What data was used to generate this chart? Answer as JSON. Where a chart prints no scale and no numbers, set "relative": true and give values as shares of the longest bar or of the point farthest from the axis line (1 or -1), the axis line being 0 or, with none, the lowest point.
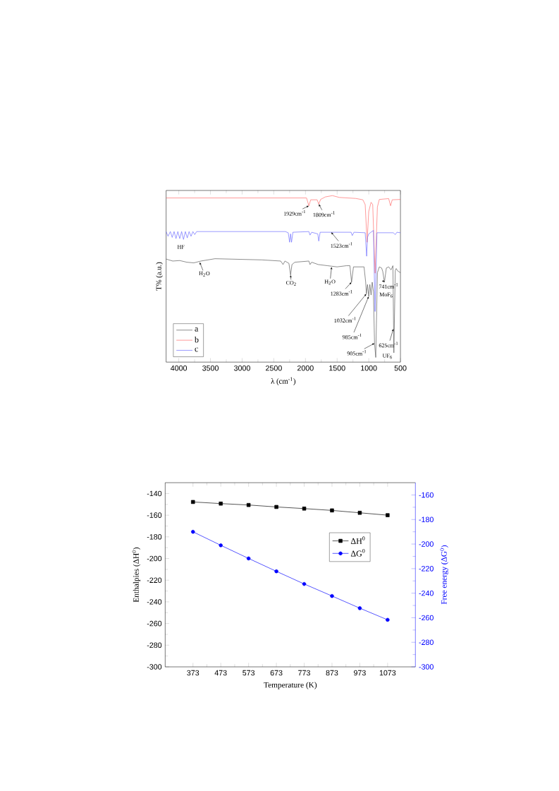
{
  "chart_data": [
    {
      "type": "line",
      "relative": true,
      "xlabel": "λ  (cm$^{-1}$)",
      "ylabel": "T% (a.u.)",
      "xlim": [
        4200,
        500
      ],
      "xticks": [
        4000,
        3500,
        3000,
        2500,
        2000,
        1500,
        1000,
        500
      ],
      "legend": "bottom left",
      "series": [
        {
          "name": "a",
          "color": "#555555",
          "x": [
            4200,
            4096,
            3985,
            3874,
            3763,
            3651,
            3540,
            3429,
            2688,
            2391,
            2354,
            2324,
            2261,
            2235,
            2213,
            2168,
            1946,
            1928,
            1902,
            1798,
            1650,
            1501,
            1353,
            1298,
            1272,
            1242,
            1075,
            1049,
            1038,
            1020,
            1001,
            983,
            964,
            946,
            927,
            909,
            890,
            864,
            834,
            797,
            779,
            753,
            723,
            686,
            649,
            619,
            604,
            582,
            567,
            545,
            500
          ],
          "values": [
            0.619,
            0.607,
            0.61,
            0.6,
            0.596,
            0.607,
            0.614,
            0.621,
            0.614,
            0.607,
            0.586,
            0.607,
            0.593,
            0.523,
            0.586,
            0.6,
            0.607,
            0.586,
            0.6,
            0.586,
            0.579,
            0.572,
            0.579,
            0.579,
            0.48,
            0.572,
            0.572,
            0.48,
            0.41,
            0.466,
            0.395,
            0.466,
            0.403,
            0.48,
            0.424,
            0.113,
            0.028,
            0.537,
            0.572,
            0.565,
            0.544,
            0.48,
            0.565,
            0.572,
            0.554,
            0.579,
            0.056,
            0.551,
            0.562,
            0.548,
            0.537
          ]
        },
        {
          "name": "b",
          "color": "#ff6666",
          "x": [
            4200,
            1983,
            1946,
            1917,
            1816,
            1790,
            1761,
            1687,
            1575,
            1464,
            1205,
            1094,
            1057,
            1027,
            1001,
            964,
            938,
            901,
            864,
            834,
            686,
            656,
            630,
            500
          ],
          "values": [
            0.986,
            0.986,
            0.939,
            0.975,
            0.975,
            0.949,
            0.977,
            0.992,
            1.0,
            0.989,
            0.983,
            0.975,
            0.946,
            0.72,
            0.904,
            0.96,
            0.946,
            0.534,
            0.932,
            0.977,
            0.982,
            0.939,
            0.975,
            0.977
          ]
        },
        {
          "name": "c",
          "color": "#6666ff",
          "x": [
            4200,
            4170,
            4133,
            4104,
            4074,
            4044,
            4015,
            3985,
            3955,
            3926,
            3896,
            3866,
            3837,
            3807,
            3777,
            3748,
            3718,
            2317,
            2272,
            2250,
            2235,
            2220,
            2198,
            1946,
            1928,
            1902,
            1805,
            1790,
            1768,
            1279,
            1261,
            1234,
            1057,
            1034,
            1020,
            1001,
            927,
            901,
            871,
            612,
            582,
            556,
            500
          ],
          "values": [
            0.784,
            0.756,
            0.784,
            0.749,
            0.784,
            0.742,
            0.784,
            0.742,
            0.784,
            0.737,
            0.784,
            0.746,
            0.784,
            0.756,
            0.784,
            0.766,
            0.784,
            0.784,
            0.777,
            0.72,
            0.77,
            0.72,
            0.78,
            0.784,
            0.763,
            0.78,
            0.77,
            0.727,
            0.78,
            0.78,
            0.76,
            0.78,
            0.777,
            0.636,
            0.749,
            0.77,
            0.791,
            0.304,
            0.777,
            0.777,
            0.766,
            0.78,
            0.777
          ]
        }
      ],
      "annotations": [
        {
          "text": "1929cm$^{-1}$",
          "x": 1946,
          "y": 0.939
        },
        {
          "text": "1809cm$^{-1}$",
          "x": 1790,
          "y": 0.949
        },
        {
          "text": "HF",
          "x": 3985,
          "y": 0.742
        },
        {
          "text": "1523cm$^{-1}$",
          "x": 1594,
          "y": 0.78
        },
        {
          "text": "H$_{2}$O",
          "x": 3670,
          "y": 0.6
        },
        {
          "text": "CO$_{2}$",
          "x": 2235,
          "y": 0.523
        },
        {
          "text": "H$_{2}$O",
          "x": 1587,
          "y": 0.572
        },
        {
          "text": "1283cm$^{-1}$",
          "x": 1272,
          "y": 0.48
        },
        {
          "text": "1032cm$^{-1}$",
          "x": 1038,
          "y": 0.41
        },
        {
          "text": "985cm$^{-1}$",
          "x": 1001,
          "y": 0.395
        },
        {
          "text": "905cm$^{-1}$",
          "x": 909,
          "y": 0.113
        },
        {
          "text": "625cm$^{-1}$",
          "x": 612,
          "y": 0.2
        },
        {
          "text": "UF$_{6}$",
          "x": 604,
          "y": 0.056
        },
        {
          "text": "741cm$^{-1}$",
          "x": 753,
          "y": 0.48
        },
        {
          "text": "MoF$_{6}$",
          "x": 753,
          "y": 0.48
        }
      ]
    },
    {
      "type": "line",
      "xlabel": "Temperature (K)",
      "ylabel": "Enthalpies (ΔH$^{0}$)",
      "y2label": "Free energy  (ΔG$^{0}$)",
      "x": [
        373,
        473,
        573,
        673,
        773,
        873,
        973,
        1073
      ],
      "xlim": [
        273,
        1173
      ],
      "xticks": [
        373,
        473,
        573,
        673,
        773,
        873,
        973,
        1073
      ],
      "ylim": [
        -300,
        -130
      ],
      "yticks": [
        -300,
        -280,
        -260,
        -240,
        -220,
        -200,
        -180,
        -160,
        -140
      ],
      "y2lim": [
        -300,
        -150
      ],
      "y2ticks": [
        -300,
        -280,
        -260,
        -240,
        -220,
        -200,
        -180,
        -160
      ],
      "legend": "right",
      "series": [
        {
          "name": "ΔH$^{0}$",
          "color": "#000000",
          "marker": "square",
          "values": [
            -147.8,
            -149.3,
            -150.6,
            -152.4,
            -153.9,
            -155.6,
            -157.8,
            -160.0
          ]
        },
        {
          "name": "ΔG$^{0}$",
          "color": "#0000ff",
          "marker": "circle",
          "axis": "y2",
          "values": [
            -190.0,
            -201.0,
            -211.7,
            -222.2,
            -232.5,
            -242.3,
            -252.2,
            -261.7
          ]
        }
      ]
    }
  ]
}
